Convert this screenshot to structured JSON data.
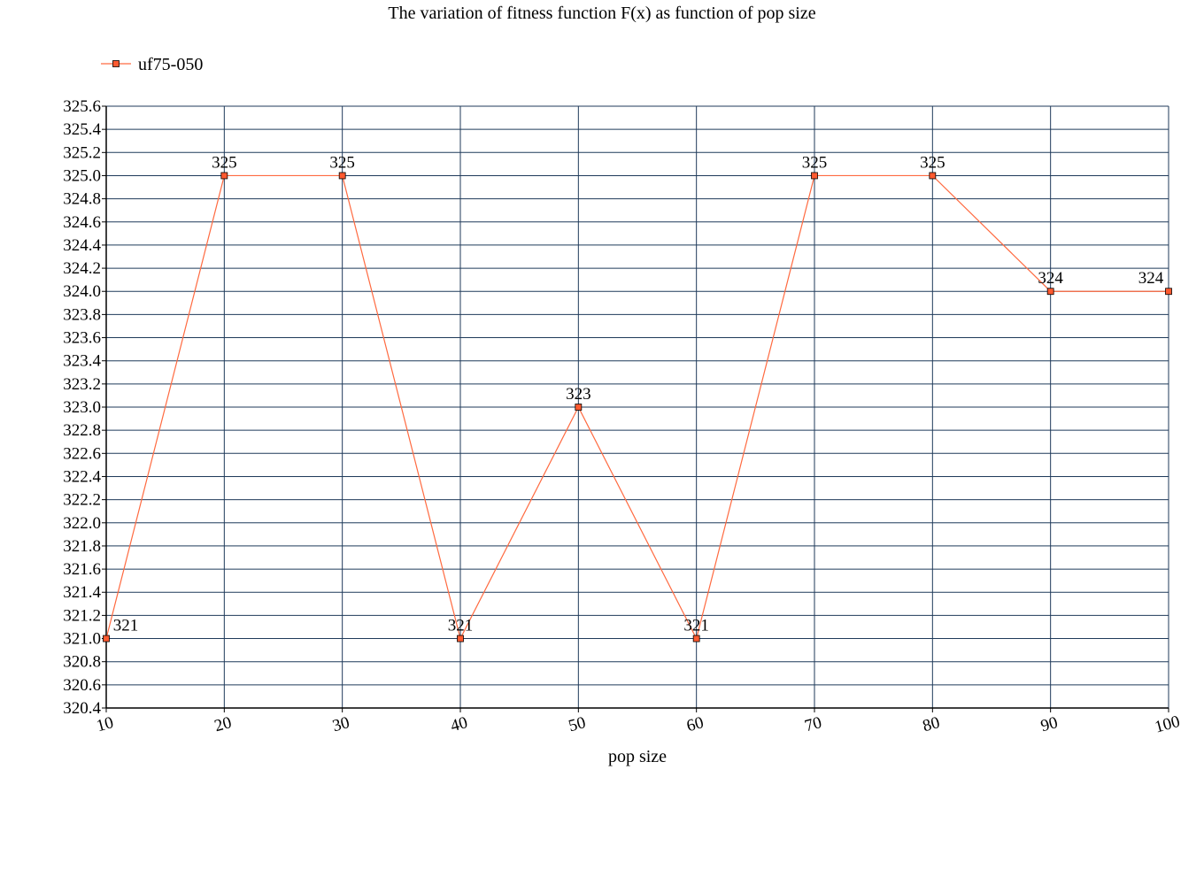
{
  "chart_data": {
    "type": "line",
    "title": "The variation of fitness function F(x) as function of pop size",
    "xlabel": "pop size",
    "ylabel": "",
    "x": [
      10,
      20,
      30,
      40,
      50,
      60,
      70,
      80,
      90,
      100
    ],
    "x_tick_labels": [
      "10",
      "20",
      "30",
      "40",
      "50",
      "60",
      "70",
      "80",
      "90",
      "100"
    ],
    "series": [
      {
        "name": "uf75-050",
        "values": [
          321,
          325,
          325,
          321,
          323,
          321,
          325,
          325,
          324,
          324
        ],
        "data_labels": [
          "321",
          "325",
          "325",
          "321",
          "323",
          "321",
          "325",
          "325",
          "324",
          "324"
        ],
        "color": "#ff6a40",
        "marker_color": "#ff5a30",
        "marker": "square"
      }
    ],
    "ylim": [
      320.4,
      325.6
    ],
    "y_ticks": [
      "320.4",
      "320.6",
      "320.8",
      "321.0",
      "321.2",
      "321.4",
      "321.6",
      "321.8",
      "322.0",
      "322.2",
      "322.4",
      "322.6",
      "322.8",
      "323.0",
      "323.2",
      "323.4",
      "323.6",
      "323.8",
      "324.0",
      "324.2",
      "324.4",
      "324.6",
      "324.8",
      "325.0",
      "325.2",
      "325.4",
      "325.6"
    ],
    "grid": true,
    "grid_color": "#1f3a5a",
    "legend_position": "top-left"
  }
}
